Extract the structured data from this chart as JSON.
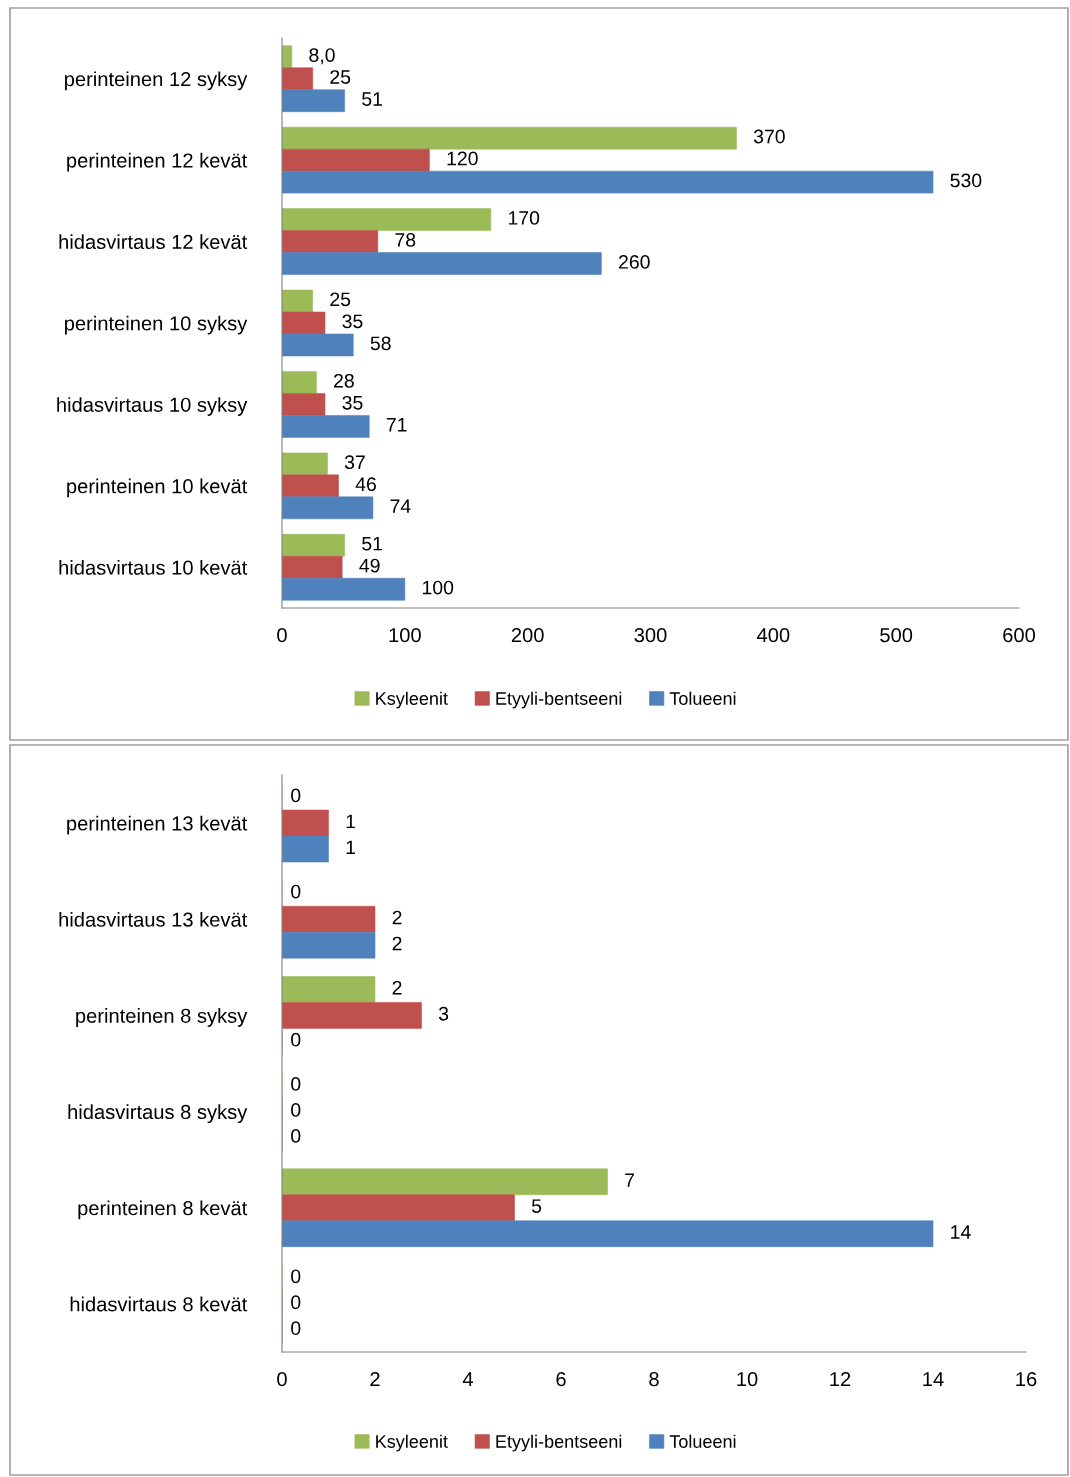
{
  "chart_data": [
    {
      "type": "bar",
      "orientation": "horizontal",
      "categories": [
        "perinteinen 12 syksy",
        "perinteinen 12 kevät",
        "hidasvirtaus 12 kevät",
        "perinteinen 10 syksy",
        "hidasvirtaus 10 syksy",
        "perinteinen 10 kevät",
        "hidasvirtaus 10 kevät"
      ],
      "series": [
        {
          "name": "Ksyleenit",
          "color": "#9bbb59",
          "values": [
            8.0,
            370,
            170,
            25,
            28,
            37,
            51
          ],
          "value_labels": [
            "8,0",
            "370",
            "170",
            "25",
            "28",
            "37",
            "51"
          ]
        },
        {
          "name": "Etyyli-bentseeni",
          "color": "#c0504d",
          "values": [
            25,
            120,
            78,
            35,
            35,
            46,
            49
          ],
          "value_labels": [
            "25",
            "120",
            "78",
            "35",
            "35",
            "46",
            "49"
          ]
        },
        {
          "name": "Tolueeni",
          "color": "#4f81bd",
          "values": [
            51,
            530,
            260,
            58,
            71,
            74,
            100
          ],
          "value_labels": [
            "51",
            "530",
            "260",
            "58",
            "71",
            "74",
            "100"
          ]
        }
      ],
      "xlim": [
        0,
        600
      ],
      "xticks": [
        0,
        100,
        200,
        300,
        400,
        500,
        600
      ],
      "grid": false,
      "legend": "bottom"
    },
    {
      "type": "bar",
      "orientation": "horizontal",
      "categories": [
        "perinteinen 13 kevät",
        "hidasvirtaus 13 kevät",
        "perinteinen 8 syksy",
        "hidasvirtaus 8 syksy",
        "perinteinen 8 kevät",
        "hidasvirtaus 8 kevät"
      ],
      "series": [
        {
          "name": "Ksyleenit",
          "color": "#9bbb59",
          "values": [
            0,
            0,
            2,
            0,
            7,
            0
          ]
        },
        {
          "name": "Etyyli-bentseeni",
          "color": "#c0504d",
          "values": [
            1,
            2,
            3,
            0,
            5,
            0
          ]
        },
        {
          "name": "Tolueeni",
          "color": "#4f81bd",
          "values": [
            1,
            2,
            0,
            0,
            14,
            0
          ]
        }
      ],
      "data_labels": true,
      "xlim": [
        0,
        16
      ],
      "xticks": [
        0,
        2,
        4,
        6,
        8,
        10,
        12,
        14,
        16
      ],
      "grid": false,
      "legend": "bottom"
    }
  ]
}
